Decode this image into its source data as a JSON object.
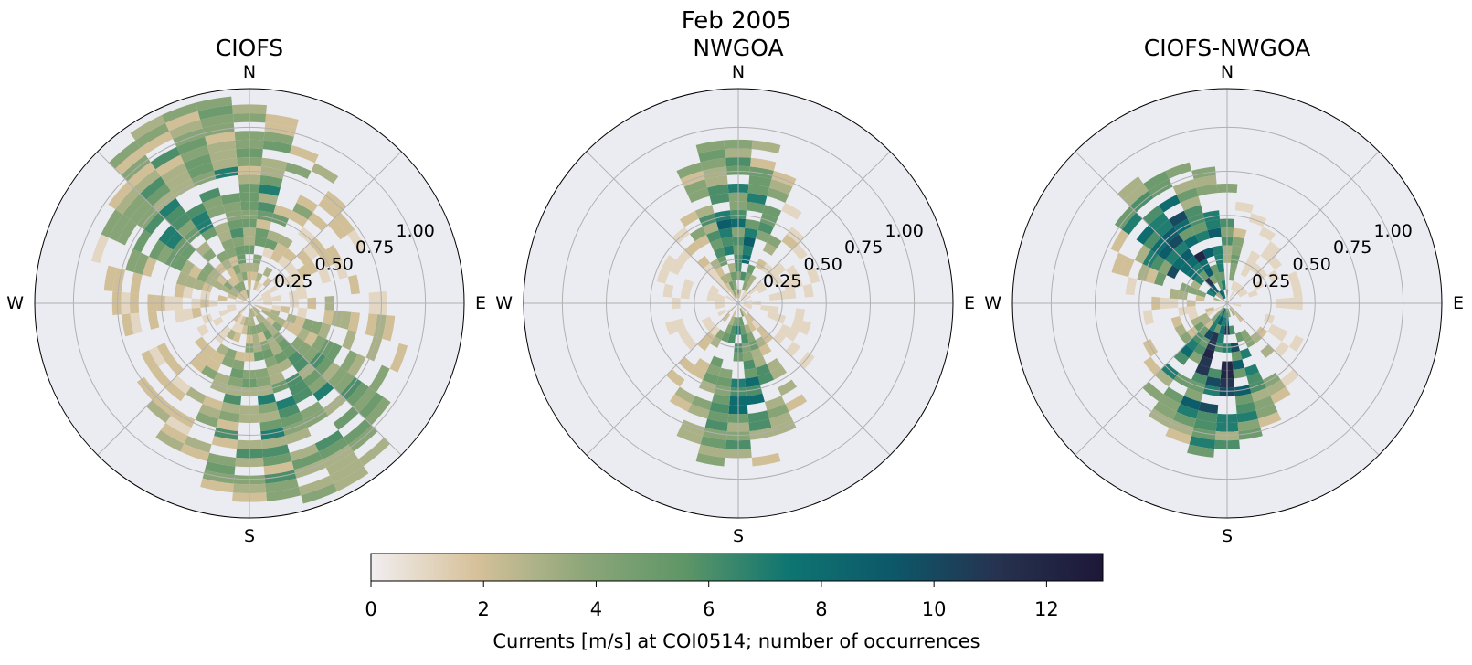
{
  "figure": {
    "suptitle": "Feb 2005",
    "colorbar_label": "Currents [m/s] at COI0514; number of occurrences",
    "colorbar_ticks": [
      "0",
      "2",
      "4",
      "6",
      "8",
      "10",
      "12"
    ],
    "colorbar_range": [
      0,
      13
    ],
    "colormap": [
      "#f2eef0",
      "#d6c19a",
      "#8fa77a",
      "#5e9667",
      "#0e7571",
      "#0d5769",
      "#26324f",
      "#1d1738"
    ],
    "background_color": "#ebebf2"
  },
  "chart_data": [
    {
      "type": "polar-histogram",
      "title": "CIOFS",
      "directions": [
        "N",
        "E",
        "S",
        "W"
      ],
      "r_ticks": [
        "0.25",
        "0.50",
        "0.75",
        "1.00"
      ],
      "rlim": [
        0,
        1.22
      ],
      "direction_bins": 36,
      "speed_bin_width": 0.05,
      "max_count": 7,
      "principal_axis": [
        340,
        160
      ],
      "spread_deg": 70,
      "peak_speed": 0.62
    },
    {
      "type": "polar-histogram",
      "title": "NWGOA",
      "directions": [
        "N",
        "E",
        "S",
        "W"
      ],
      "r_ticks": [
        "0.25",
        "0.50",
        "0.75",
        "1.00"
      ],
      "rlim": [
        0,
        1.22
      ],
      "direction_bins": 36,
      "speed_bin_width": 0.05,
      "max_count": 9,
      "principal_axis": [
        0,
        180
      ],
      "spread_deg": 35,
      "peak_speed": 0.4
    },
    {
      "type": "polar-histogram",
      "title": "CIOFS-NWGOA",
      "directions": [
        "N",
        "E",
        "S",
        "W"
      ],
      "r_ticks": [
        "0.25",
        "0.50",
        "0.75",
        "1.00"
      ],
      "rlim": [
        0,
        1.22
      ],
      "direction_bins": 36,
      "speed_bin_width": 0.05,
      "max_count": 12,
      "principal_axis": [
        325,
        190
      ],
      "spread_deg": 45,
      "peak_speed": 0.32
    }
  ]
}
